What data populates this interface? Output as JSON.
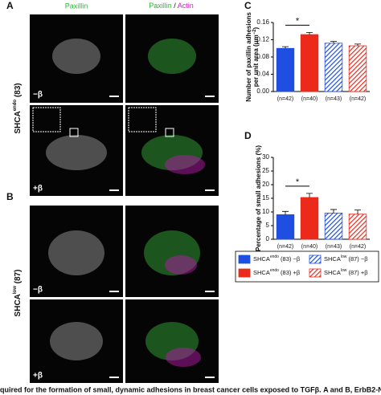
{
  "figure": {
    "panel_a": "A",
    "panel_b": "B",
    "panel_c": "C",
    "panel_d": "D",
    "col1": "Paxillin",
    "col2_green": "Paxillin",
    "col2_sep": " / ",
    "col2_magenta": "Actin",
    "row_a": {
      "base": "SHCA",
      "sup": "endo",
      "rest": " (83)"
    },
    "row_b": {
      "base": "SHCA",
      "sup": "low",
      "rest": " (87)"
    },
    "minus": "−β",
    "plus": "+β"
  },
  "chart_data": [
    {
      "type": "bar",
      "ylabel": [
        "Number of paxillin adhesions",
        "per unit area (μm",
        "−2",
        ")"
      ],
      "categories": [
        "(n=42)",
        "(n=40)",
        "(n=43)",
        "(n=42)"
      ],
      "values": [
        0.1,
        0.132,
        0.112,
        0.106
      ],
      "errors": [
        0.004,
        0.005,
        0.004,
        0.004
      ],
      "colors": [
        "#1f4fe0",
        "#ec2a1c",
        "#1f4fe0",
        "#ec2a1c"
      ],
      "hatched": [
        false,
        false,
        true,
        true
      ],
      "ylim": [
        0,
        0.16
      ],
      "yticks": [
        {
          "value": 0,
          "label": "0.00"
        },
        0.04,
        0.08,
        0.12,
        0.16
      ],
      "annotation": "*"
    },
    {
      "type": "bar",
      "ylabel": [
        "Percentage of small adhesions (%)"
      ],
      "categories": [
        "(n=42)",
        "(n=40)",
        "(n=43)",
        "(n=42)"
      ],
      "values": [
        9.0,
        15.3,
        9.6,
        9.2
      ],
      "errors": [
        1.2,
        1.5,
        1.3,
        1.5
      ],
      "colors": [
        "#1f4fe0",
        "#ec2a1c",
        "#1f4fe0",
        "#ec2a1c"
      ],
      "hatched": [
        false,
        false,
        true,
        true
      ],
      "ylim": [
        0,
        30
      ],
      "yticks": [
        0,
        5,
        10,
        15,
        20,
        25,
        30
      ],
      "annotation": "*"
    }
  ],
  "legend": [
    {
      "base": "SHCA",
      "sup": "endo",
      "rest": " (83) −β"
    },
    {
      "base": "SHCA",
      "sup": "endo",
      "rest": " (83) +β"
    },
    {
      "base": "SHCA",
      "sup": "low",
      "rest": " (87) −β"
    },
    {
      "base": "SHCA",
      "sup": "low",
      "rest": " (87) +β"
    }
  ],
  "caption": "quired for the formation of small, dynamic adhesions in breast cancer cells exposed to TGFβ. A and B, ErbB2-N"
}
